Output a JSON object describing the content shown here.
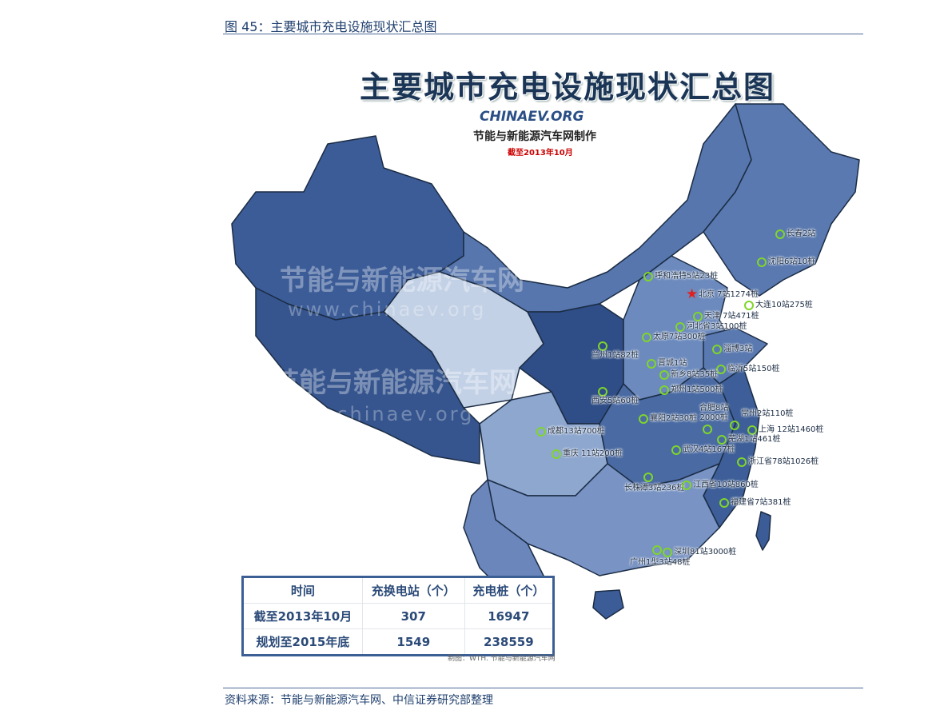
{
  "caption": "图 45：主要城市充电设施现状汇总图",
  "source": "资料来源：节能与新能源汽车网、中信证券研究部整理",
  "figure": {
    "title": "主要城市充电设施现状汇总图",
    "logo_text": "CHINAEV.ORG",
    "producer": "节能与新能源汽车网制作",
    "as_of": "截至2013年10月",
    "watermark_cn": "节能与新能源汽车网",
    "watermark_url": "www.chinaev.org",
    "credit": "制图：WTH. 节能与新能源汽车网",
    "colors": {
      "marker": "#7fd62a",
      "capital_star": "#e02020",
      "map_dark": "#34578f",
      "map_light": "#c3d1e6"
    },
    "cities": [
      {
        "label": "长春2站"
      },
      {
        "label": "沈阳6站10桩"
      },
      {
        "label": "呼和浩特5站23桩"
      },
      {
        "label": "北京 7站1274桩",
        "capital": true
      },
      {
        "label": "大连10站275桩"
      },
      {
        "label": "天津 7站471桩"
      },
      {
        "label": "河北省3站100桩"
      },
      {
        "label": "太原7站300桩"
      },
      {
        "label": "兰州1站82桩"
      },
      {
        "label": "淄博3站"
      },
      {
        "label": "晋城1站"
      },
      {
        "label": "临沂5站150桩"
      },
      {
        "label": "新乡8站35桩"
      },
      {
        "label": "郑州1站500桩"
      },
      {
        "label": "西安5站60桩"
      },
      {
        "label": "襄阳2站30桩"
      },
      {
        "label": "合肥8站\n2000桩"
      },
      {
        "label": "常州2站110桩"
      },
      {
        "label": "上海 12站1460桩"
      },
      {
        "label": "成都13站700桩"
      },
      {
        "label": "芜湖1站461桩"
      },
      {
        "label": "武汉4站167桩"
      },
      {
        "label": "重庆 11站200桩"
      },
      {
        "label": "浙江省78站1026桩"
      },
      {
        "label": "长株潭3站236桩"
      },
      {
        "label": "江西省10站860桩"
      },
      {
        "label": "福建省7站381桩"
      },
      {
        "label": "广州1型3站48桩"
      },
      {
        "label": "深圳81站3000桩"
      }
    ],
    "table": {
      "headers": [
        "时间",
        "充换电站（个）",
        "充电桩（个）"
      ],
      "rows": [
        [
          "截至2013年10月",
          "307",
          "16947"
        ],
        [
          "规划至2015年底",
          "1549",
          "238559"
        ]
      ]
    }
  }
}
